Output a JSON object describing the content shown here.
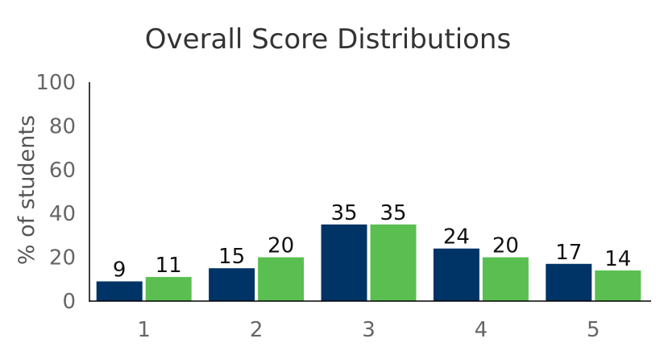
{
  "chart_data": {
    "type": "bar",
    "title": "Overall Score Distributions",
    "xlabel": "",
    "ylabel": "% of students",
    "ylim": [
      0,
      100
    ],
    "yticks": [
      0,
      20,
      40,
      60,
      80,
      100
    ],
    "categories": [
      "1",
      "2",
      "3",
      "4",
      "5"
    ],
    "series": [
      {
        "values": [
          9,
          15,
          35,
          24,
          17
        ],
        "color": "#003366"
      },
      {
        "values": [
          11,
          20,
          35,
          20,
          14
        ],
        "color": "#5ABF50"
      }
    ],
    "grid": false,
    "legend": "none"
  }
}
